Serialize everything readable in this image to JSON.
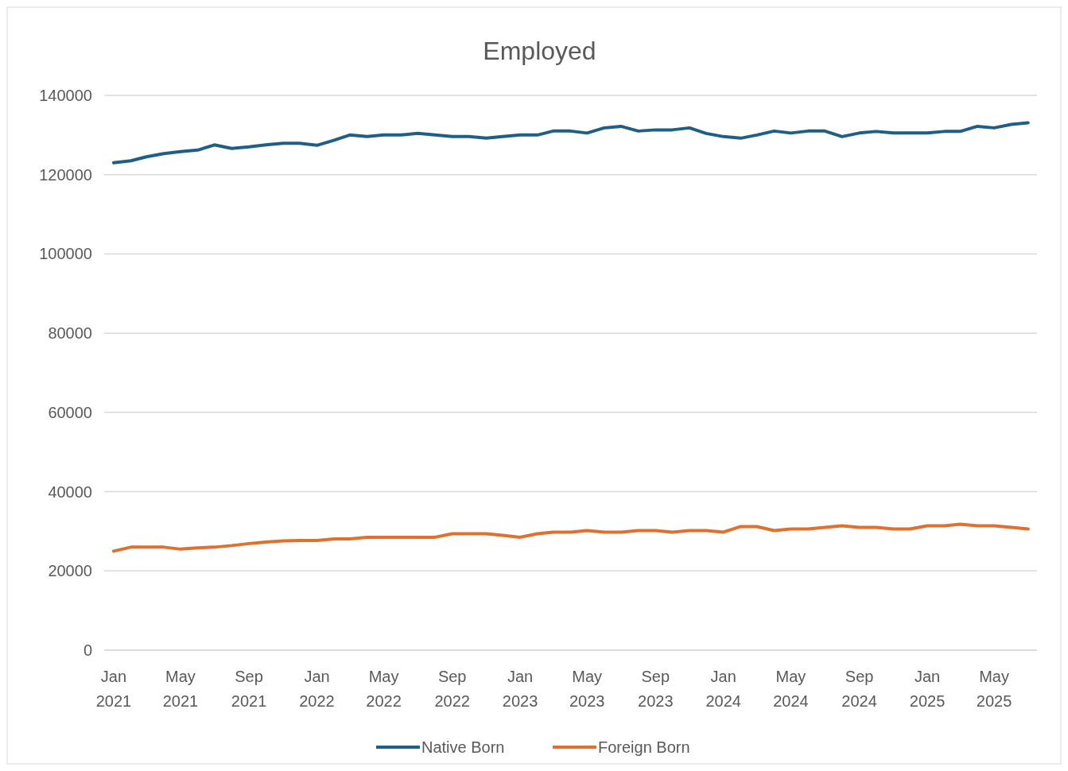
{
  "chart_data": {
    "type": "line",
    "title": "Employed",
    "x": [
      "2021-01",
      "2021-02",
      "2021-03",
      "2021-04",
      "2021-05",
      "2021-06",
      "2021-07",
      "2021-08",
      "2021-09",
      "2021-10",
      "2021-11",
      "2021-12",
      "2022-01",
      "2022-02",
      "2022-03",
      "2022-04",
      "2022-05",
      "2022-06",
      "2022-07",
      "2022-08",
      "2022-09",
      "2022-10",
      "2022-11",
      "2022-12",
      "2023-01",
      "2023-02",
      "2023-03",
      "2023-04",
      "2023-05",
      "2023-06",
      "2023-07",
      "2023-08",
      "2023-09",
      "2023-10",
      "2023-11",
      "2023-12",
      "2024-01",
      "2024-02",
      "2024-03",
      "2024-04",
      "2024-05",
      "2024-06",
      "2024-07",
      "2024-08",
      "2024-09",
      "2024-10",
      "2024-11",
      "2024-12",
      "2025-01",
      "2025-02",
      "2025-03",
      "2025-04",
      "2025-05",
      "2025-06",
      "2025-07"
    ],
    "series": [
      {
        "name": "Native Born",
        "color": "#1f5f86",
        "values": [
          123000,
          123500,
          124500,
          125300,
          125800,
          126200,
          127500,
          126600,
          127000,
          127500,
          127900,
          127900,
          127400,
          128700,
          130000,
          129600,
          130000,
          130000,
          130400,
          130000,
          129600,
          129600,
          129200,
          129600,
          130000,
          130000,
          131000,
          131000,
          130500,
          131800,
          132200,
          131000,
          131300,
          131300,
          131800,
          130400,
          129600,
          129200,
          130000,
          131000,
          130500,
          131000,
          131000,
          129600,
          130500,
          130900,
          130500,
          130500,
          130500,
          130900,
          130900,
          132200,
          131800,
          132700,
          133100
        ]
      },
      {
        "name": "Foreign Born",
        "color": "#e0702e",
        "values": [
          25000,
          26000,
          26000,
          26000,
          25500,
          25800,
          26000,
          26400,
          26900,
          27300,
          27600,
          27700,
          27700,
          28100,
          28100,
          28500,
          28500,
          28500,
          28500,
          28500,
          29400,
          29400,
          29400,
          29000,
          28500,
          29400,
          29800,
          29800,
          30200,
          29800,
          29800,
          30200,
          30200,
          29800,
          30200,
          30200,
          29800,
          31200,
          31200,
          30200,
          30600,
          30600,
          31000,
          31400,
          31000,
          31000,
          30600,
          30600,
          31400,
          31400,
          31800,
          31400,
          31400,
          31000,
          30600
        ]
      }
    ],
    "xlim": [
      "2020-12-15",
      "2025-07-17"
    ],
    "xticks": [
      {
        "value": "2021-01",
        "label": "Jan 2021"
      },
      {
        "value": "2021-05",
        "label": "May 2021"
      },
      {
        "value": "2021-09",
        "label": "Sep 2021"
      },
      {
        "value": "2022-01",
        "label": "Jan 2022"
      },
      {
        "value": "2022-05",
        "label": "May 2022"
      },
      {
        "value": "2022-09",
        "label": "Sep 2022"
      },
      {
        "value": "2023-01",
        "label": "Jan 2023"
      },
      {
        "value": "2023-05",
        "label": "May 2023"
      },
      {
        "value": "2023-09",
        "label": "Sep 2023"
      },
      {
        "value": "2024-01",
        "label": "Jan 2024"
      },
      {
        "value": "2024-05",
        "label": "May 2024"
      },
      {
        "value": "2024-09",
        "label": "Sep 2024"
      },
      {
        "value": "2025-01",
        "label": "Jan 2025"
      },
      {
        "value": "2025-05",
        "label": "May 2025"
      }
    ],
    "ylim": [
      0,
      140000
    ],
    "yticks": [
      0,
      20000,
      40000,
      60000,
      80000,
      100000,
      120000,
      140000
    ],
    "grid": "y",
    "legend": "bottom",
    "marker": "none",
    "line_style": "solid"
  }
}
